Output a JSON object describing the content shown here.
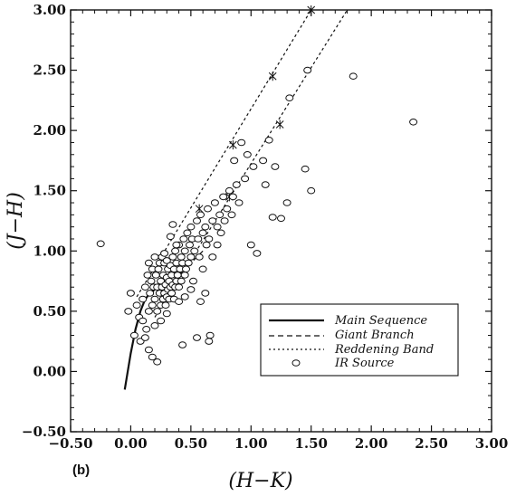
{
  "chart_data": {
    "type": "scatter",
    "panel_label": "(b)",
    "xlabel": "(H−K)",
    "ylabel": "(J−H)",
    "xlim": [
      -0.5,
      3.0
    ],
    "ylim": [
      -0.5,
      3.0
    ],
    "x_ticks": [
      "−0.50",
      "0.00",
      "0.50",
      "1.00",
      "1.50",
      "2.00",
      "2.50",
      "3.00"
    ],
    "y_ticks": [
      "−0.50",
      "0.00",
      "0.50",
      "1.00",
      "1.50",
      "2.00",
      "2.50",
      "3.00"
    ],
    "legend": {
      "placement": "lower-right",
      "entries": [
        {
          "label": "Main Sequence",
          "style": "solid"
        },
        {
          "label": "Giant Branch",
          "style": "dashed"
        },
        {
          "label": "Reddening Band",
          "style": "dotted"
        },
        {
          "label": "IR Source",
          "style": "marker"
        }
      ]
    },
    "main_sequence": {
      "x": [
        -0.05,
        0.0,
        0.04,
        0.08,
        0.12,
        0.16,
        0.2
      ],
      "y": [
        -0.15,
        0.15,
        0.35,
        0.5,
        0.6,
        0.65,
        0.68
      ]
    },
    "giant_branch": {
      "x": [
        0.3,
        0.4,
        0.5,
        0.6
      ],
      "y": [
        0.72,
        0.8,
        0.9,
        1.0
      ]
    },
    "reddening_band": [
      {
        "x": [
          0.05,
          1.5
        ],
        "y": [
          0.62,
          3.0
        ],
        "marker_x": [
          0.57,
          0.85,
          1.18,
          1.5
        ],
        "marker_y": [
          1.35,
          1.88,
          2.45,
          3.0
        ]
      },
      {
        "x": [
          0.2,
          1.8
        ],
        "y": [
          0.45,
          3.0
        ],
        "marker_x": [
          0.82,
          1.24
        ],
        "marker_y": [
          1.45,
          2.05
        ]
      }
    ],
    "ir_sources": {
      "x": [
        -0.25,
        -0.02,
        0.0,
        0.03,
        0.05,
        0.07,
        0.08,
        0.1,
        0.12,
        0.13,
        0.14,
        0.15,
        0.15,
        0.16,
        0.17,
        0.18,
        0.18,
        0.19,
        0.2,
        0.2,
        0.21,
        0.22,
        0.22,
        0.23,
        0.24,
        0.24,
        0.25,
        0.25,
        0.26,
        0.26,
        0.27,
        0.27,
        0.28,
        0.28,
        0.29,
        0.29,
        0.3,
        0.3,
        0.3,
        0.31,
        0.31,
        0.32,
        0.32,
        0.33,
        0.33,
        0.34,
        0.34,
        0.35,
        0.35,
        0.36,
        0.36,
        0.37,
        0.37,
        0.38,
        0.38,
        0.39,
        0.4,
        0.4,
        0.41,
        0.42,
        0.42,
        0.43,
        0.44,
        0.45,
        0.45,
        0.46,
        0.47,
        0.48,
        0.49,
        0.5,
        0.5,
        0.51,
        0.52,
        0.53,
        0.55,
        0.56,
        0.57,
        0.58,
        0.6,
        0.6,
        0.62,
        0.63,
        0.64,
        0.65,
        0.66,
        0.68,
        0.7,
        0.72,
        0.74,
        0.75,
        0.77,
        0.78,
        0.8,
        0.82,
        0.84,
        0.85,
        0.86,
        0.88,
        0.9,
        0.92,
        0.95,
        0.97,
        1.0,
        1.02,
        1.05,
        1.1,
        1.12,
        1.15,
        1.18,
        1.2,
        1.25,
        1.3,
        1.32,
        1.45,
        1.47,
        1.5,
        1.85,
        2.35,
        0.65,
        0.55,
        0.45,
        0.35,
        0.25,
        0.15,
        0.2,
        0.3,
        0.4,
        0.5,
        0.28,
        0.33,
        0.38,
        0.43,
        0.22,
        0.18,
        0.12,
        0.1,
        0.58,
        0.62,
        0.68,
        0.72
      ],
      "y": [
        1.06,
        0.5,
        0.65,
        0.3,
        0.55,
        0.45,
        0.25,
        0.6,
        0.7,
        0.35,
        0.8,
        0.5,
        0.9,
        0.65,
        0.75,
        0.55,
        0.85,
        0.7,
        0.6,
        0.95,
        0.8,
        0.5,
        0.7,
        0.85,
        0.65,
        0.9,
        0.55,
        0.75,
        0.7,
        0.95,
        0.6,
        0.8,
        0.65,
        0.9,
        0.72,
        0.55,
        0.62,
        0.78,
        0.92,
        0.68,
        0.85,
        0.6,
        0.75,
        0.7,
        0.88,
        0.65,
        0.8,
        0.72,
        0.95,
        0.6,
        0.85,
        0.7,
        1.0,
        0.75,
        0.9,
        0.8,
        0.7,
        1.05,
        0.85,
        0.75,
        0.95,
        0.9,
        1.1,
        0.8,
        1.0,
        0.85,
        1.15,
        0.9,
        1.05,
        0.95,
        1.2,
        1.1,
        0.75,
        1.0,
        1.25,
        1.1,
        0.95,
        1.3,
        0.85,
        1.15,
        1.2,
        1.05,
        1.35,
        1.1,
        0.3,
        1.25,
        1.4,
        1.2,
        1.3,
        1.15,
        1.45,
        1.25,
        1.35,
        1.5,
        1.3,
        1.45,
        1.75,
        1.55,
        1.4,
        1.9,
        1.6,
        1.8,
        1.05,
        1.7,
        0.98,
        1.75,
        1.55,
        1.92,
        1.28,
        1.7,
        1.27,
        1.4,
        2.27,
        1.68,
        2.5,
        1.5,
        2.45,
        2.07,
        0.25,
        0.28,
        0.62,
        1.22,
        0.42,
        0.18,
        0.38,
        0.48,
        0.58,
        0.68,
        0.98,
        1.12,
        1.05,
        0.22,
        0.08,
        0.12,
        0.28,
        0.42,
        0.58,
        0.65,
        0.95,
        1.05
      ]
    }
  }
}
